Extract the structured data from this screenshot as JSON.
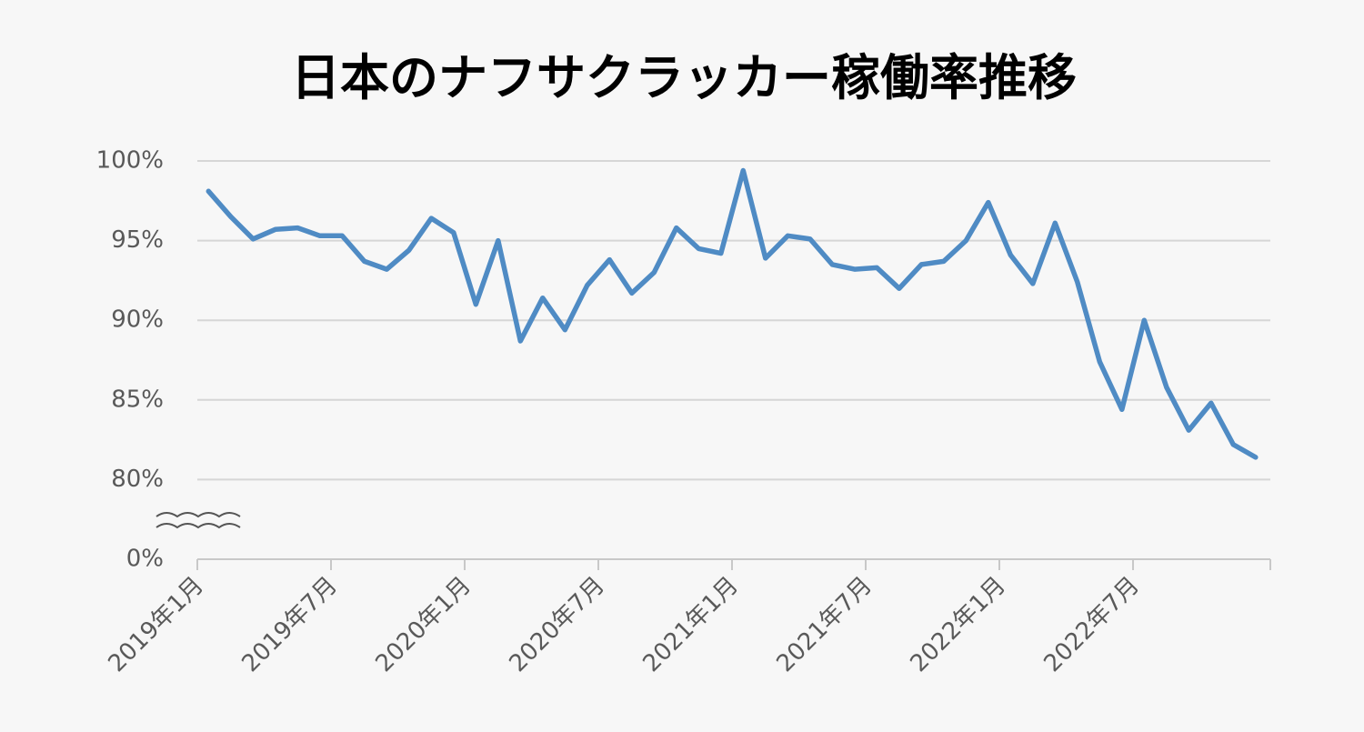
{
  "chart_data": {
    "type": "line",
    "title": "日本のナフサクラッカー稼働率推移",
    "categories": [
      "2019年1月",
      null,
      null,
      null,
      null,
      null,
      "2019年7月",
      null,
      null,
      null,
      null,
      null,
      "2020年1月",
      null,
      null,
      null,
      null,
      null,
      "2020年7月",
      null,
      null,
      null,
      null,
      null,
      "2021年1月",
      null,
      null,
      null,
      null,
      null,
      "2021年7月",
      null,
      null,
      null,
      null,
      null,
      "2022年1月",
      null,
      null,
      null,
      null,
      null,
      "2022年7月",
      null,
      null,
      null,
      null,
      null
    ],
    "series": [
      {
        "color": "#4f8bc4",
        "values": [
          98.1,
          96.5,
          95.1,
          95.7,
          95.8,
          95.3,
          95.3,
          93.7,
          93.2,
          94.4,
          96.4,
          95.5,
          91.0,
          95.0,
          88.7,
          91.4,
          89.4,
          92.2,
          93.8,
          91.7,
          93.0,
          95.8,
          94.5,
          94.2,
          99.4,
          93.9,
          95.3,
          95.1,
          93.5,
          93.2,
          93.3,
          92.0,
          93.5,
          93.7,
          95.0,
          97.4,
          94.1,
          92.3,
          96.1,
          92.4,
          87.4,
          84.4,
          90.0,
          85.8,
          83.1,
          84.8,
          82.2,
          81.4
        ]
      }
    ],
    "ylim": [
      0,
      100
    ],
    "yticks": [
      {
        "value": 0,
        "label": "0%"
      },
      {
        "value": 80,
        "label": "80%"
      },
      {
        "value": 85,
        "label": "85%"
      },
      {
        "value": 90,
        "label": "90%"
      },
      {
        "value": 95,
        "label": "95%"
      },
      {
        "value": 100,
        "label": "100%"
      }
    ],
    "axis_break": true,
    "grid": true
  }
}
